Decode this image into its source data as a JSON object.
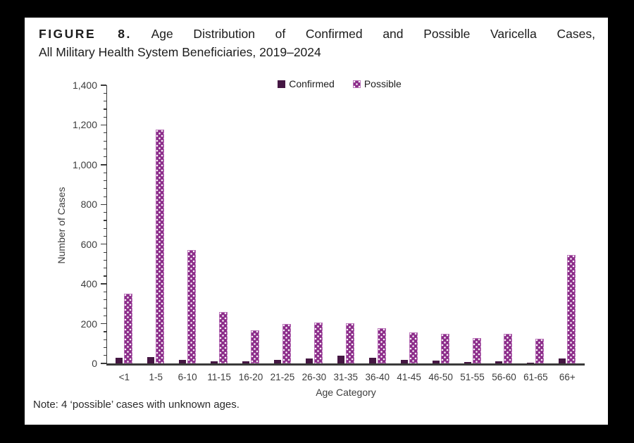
{
  "figure": {
    "label": "FIGURE 8.",
    "title_rest": "Age Distribution of Confirmed and Possible Varicella Cases,",
    "title_line2": "All Military Health System Beneficiaries, 2019–2024",
    "note": "Note: 4 ‘possible’ cases with unknown ages."
  },
  "chart_data": {
    "type": "bar",
    "title": "Age Distribution of Confirmed and Possible Varicella Cases, All Military Health System Beneficiaries, 2019–2024",
    "xlabel": "Age Category",
    "ylabel": "Number of Cases",
    "ylim": [
      0,
      1400
    ],
    "ytick_step": 200,
    "minor_tick_step": 40,
    "grid": false,
    "legend_position": "top-center",
    "ytick_labels": [
      "0",
      "200",
      "400",
      "600",
      "800",
      "1,000",
      "1,200",
      "1,400"
    ],
    "categories": [
      "<1",
      "1-5",
      "6-10",
      "11-15",
      "16-20",
      "21-25",
      "26-30",
      "31-35",
      "36-40",
      "41-45",
      "46-50",
      "51-55",
      "56-60",
      "61-65",
      "66+"
    ],
    "series": [
      {
        "name": "Confirmed",
        "style": "solid",
        "color": "#451743",
        "values": [
          28,
          33,
          16,
          10,
          10,
          18,
          24,
          38,
          27,
          16,
          15,
          7,
          12,
          2,
          25
        ]
      },
      {
        "name": "Possible",
        "style": "white-dot-pattern",
        "color": "#8c2d8a",
        "values": [
          350,
          1175,
          570,
          260,
          165,
          200,
          205,
          203,
          178,
          155,
          148,
          127,
          150,
          123,
          545
        ]
      }
    ]
  },
  "colors": {
    "frame": "#000000",
    "panel_background": "#ffffff",
    "confirmed": "#451743",
    "possible": "#8c2d8a",
    "axis": "#3a3a3a",
    "text": "#1c1c1c"
  }
}
